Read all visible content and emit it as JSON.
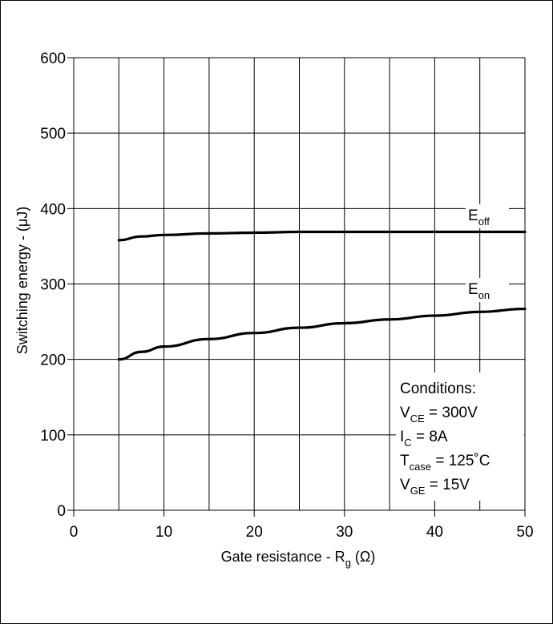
{
  "chart_data": {
    "type": "line",
    "xlabel": "Gate resistance - R",
    "xlabel_sub": "g",
    "xlabel_unit": " (Ω)",
    "ylabel": "Switching energy - (μJ)",
    "xlim": [
      0,
      50
    ],
    "ylim": [
      0,
      600
    ],
    "xticks": [
      0,
      10,
      20,
      30,
      40,
      50
    ],
    "yticks": [
      0,
      100,
      200,
      300,
      400,
      500,
      600
    ],
    "grid": true,
    "series": [
      {
        "name": "E",
        "name_sub": "off",
        "x": [
          5,
          7.5,
          10,
          15,
          20,
          25,
          30,
          35,
          40,
          45,
          50
        ],
        "y": [
          358,
          363,
          365,
          367,
          368,
          369,
          369,
          369,
          369,
          369,
          369
        ]
      },
      {
        "name": "E",
        "name_sub": "on",
        "x": [
          5,
          7.5,
          10,
          15,
          20,
          25,
          30,
          35,
          40,
          45,
          50
        ],
        "y": [
          200,
          210,
          217,
          227,
          235,
          242,
          248,
          253,
          258,
          263,
          267
        ]
      }
    ],
    "conditions": {
      "title": "Conditions:",
      "lines": [
        {
          "main": "V",
          "sub": "CE",
          "rest": " = 300V"
        },
        {
          "main": "I",
          "sub": "C",
          "rest": " = 8A"
        },
        {
          "main": "T",
          "sub": "case",
          "rest": " = 125˚C"
        },
        {
          "main": "V",
          "sub": "GE",
          "rest": " = 15V"
        }
      ]
    }
  }
}
